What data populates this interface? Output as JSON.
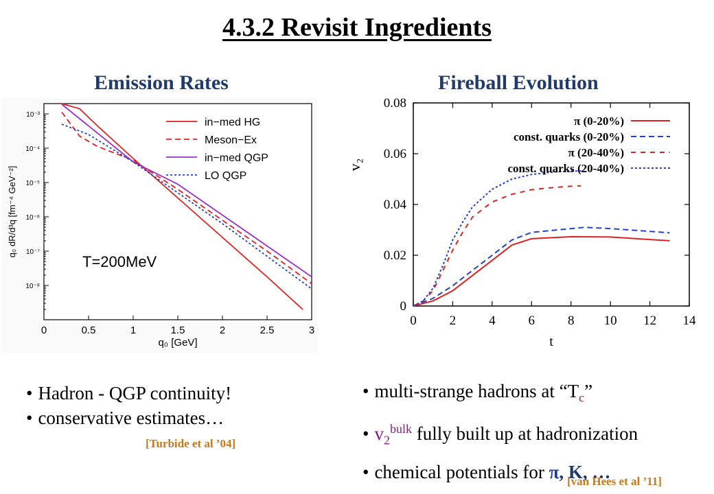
{
  "slide": {
    "title": "4.3.2  Revisit Ingredients",
    "left_heading": "Emission Rates",
    "right_heading": "Fireball Evolution",
    "left_bullets": [
      "Hadron - QGP continuity!",
      "conservative estimates…"
    ],
    "left_citation": "[Turbide et al ’04]",
    "right_bullet1_pre": "multi-strange hadrons at “T",
    "right_bullet1_sub": "c",
    "right_bullet1_post": "”",
    "right_bullet2_v": "v",
    "right_bullet2_sub": "2",
    "right_bullet2_sup": "bulk",
    "right_bullet2_post": " fully built up at hadronization",
    "right_bullet3_pre": "chemical potentials for ",
    "right_bullet3_greek": "π",
    "right_bullet3_post": ", K, …",
    "right_citation": "[van Hees et al ’11]"
  },
  "chart_data": [
    {
      "type": "line",
      "xlabel": "q₀ [GeV]",
      "ylabel": "q₀ dR/d³q [fm⁻⁴ GeV⁻²]",
      "x_ticks": [
        "0",
        "0.5",
        "1",
        "1.5",
        "2",
        "2.5",
        "3"
      ],
      "y_ticks": [
        "10⁻³",
        "10⁻⁴",
        "10⁻⁵",
        "10⁻⁶",
        "10⁻⁷",
        "10⁻⁸"
      ],
      "xlim": [
        0,
        3
      ],
      "ylog_range": [
        -9,
        -2.7
      ],
      "annotation": "T=200MeV",
      "legend_position": "top-right",
      "series": [
        {
          "name": "in−med HG",
          "color": "#e02020",
          "dash": "solid",
          "points": [
            [
              0.2,
              -2.7
            ],
            [
              0.4,
              -2.85
            ],
            [
              0.6,
              -3.35
            ],
            [
              1.0,
              -4.3
            ],
            [
              1.5,
              -5.45
            ],
            [
              2.0,
              -6.6
            ],
            [
              2.5,
              -7.75
            ],
            [
              2.9,
              -8.7
            ]
          ]
        },
        {
          "name": "Meson−Ex",
          "color": "#e02020",
          "dash": "dashed",
          "points": [
            [
              0.2,
              -2.95
            ],
            [
              0.4,
              -3.65
            ],
            [
              0.6,
              -3.95
            ],
            [
              1.0,
              -4.35
            ],
            [
              1.5,
              -5.2
            ],
            [
              2.0,
              -6.1
            ],
            [
              2.5,
              -7.0
            ],
            [
              3.0,
              -7.95
            ]
          ]
        },
        {
          "name": "in−med QGP",
          "color": "#9b2ec8",
          "dash": "solid",
          "points": [
            [
              0.2,
              -2.72
            ],
            [
              1.0,
              -4.4
            ],
            [
              1.5,
              -5.05
            ],
            [
              2.0,
              -5.95
            ],
            [
              2.5,
              -6.85
            ],
            [
              3.0,
              -7.75
            ]
          ]
        },
        {
          "name": "LO QGP",
          "color": "#2040d0",
          "dash": "dotted",
          "points": [
            [
              0.2,
              -3.3
            ],
            [
              0.5,
              -3.6
            ],
            [
              1.0,
              -4.4
            ],
            [
              1.5,
              -5.3
            ],
            [
              2.0,
              -6.2
            ],
            [
              2.5,
              -7.15
            ],
            [
              3.0,
              -8.1
            ]
          ]
        }
      ]
    },
    {
      "type": "line",
      "xlabel": "t",
      "ylabel": "v₂",
      "x_ticks": [
        "0",
        "2",
        "4",
        "6",
        "8",
        "10",
        "12",
        "14"
      ],
      "y_ticks": [
        "0",
        "0.02",
        "0.04",
        "0.06",
        "0.08"
      ],
      "xlim": [
        0,
        14
      ],
      "ylim": [
        0,
        0.08
      ],
      "legend_position": "top-right",
      "series": [
        {
          "name": "π (0-20%)",
          "color": "#e02020",
          "dash": "solid",
          "points": [
            [
              0,
              0
            ],
            [
              1,
              0.002
            ],
            [
              2,
              0.006
            ],
            [
              3,
              0.012
            ],
            [
              4,
              0.018
            ],
            [
              5,
              0.024
            ],
            [
              6,
              0.0265
            ],
            [
              8,
              0.0273
            ],
            [
              10,
              0.0272
            ],
            [
              12,
              0.0262
            ],
            [
              13,
              0.0257
            ]
          ]
        },
        {
          "name": "const. quarks (0-20%)",
          "color": "#2040d0",
          "dash": "dashed",
          "points": [
            [
              0,
              0
            ],
            [
              1,
              0.003
            ],
            [
              2,
              0.008
            ],
            [
              3,
              0.014
            ],
            [
              4,
              0.02
            ],
            [
              5,
              0.026
            ],
            [
              6,
              0.029
            ],
            [
              8,
              0.0305
            ],
            [
              8.7,
              0.031
            ],
            [
              10,
              0.0305
            ],
            [
              12,
              0.0294
            ],
            [
              13,
              0.0288
            ]
          ]
        },
        {
          "name": "π (20-40%)",
          "color": "#e02020",
          "dash": "short-dashed",
          "points": [
            [
              0,
              0
            ],
            [
              0.5,
              0.002
            ],
            [
              1,
              0.006
            ],
            [
              1.5,
              0.014
            ],
            [
              2,
              0.022
            ],
            [
              2.5,
              0.029
            ],
            [
              3,
              0.035
            ],
            [
              4,
              0.041
            ],
            [
              5,
              0.044
            ],
            [
              6,
              0.0458
            ],
            [
              7,
              0.0466
            ],
            [
              8,
              0.0472
            ],
            [
              8.5,
              0.0473
            ]
          ]
        },
        {
          "name": "const. quarks (20-40%)",
          "color": "#2040d0",
          "dash": "dotted",
          "points": [
            [
              0,
              0
            ],
            [
              0.5,
              0.002
            ],
            [
              1,
              0.007
            ],
            [
              1.5,
              0.016
            ],
            [
              2,
              0.026
            ],
            [
              2.5,
              0.033
            ],
            [
              3,
              0.039
            ],
            [
              4,
              0.046
            ],
            [
              5,
              0.05
            ],
            [
              6,
              0.0518
            ],
            [
              7,
              0.0527
            ],
            [
              8,
              0.0532
            ],
            [
              8.6,
              0.0532
            ]
          ]
        }
      ]
    }
  ]
}
